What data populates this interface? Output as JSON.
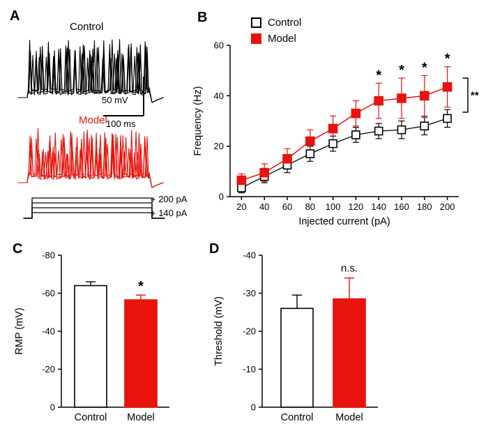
{
  "colors": {
    "control": "#000000",
    "model": "#e8130c",
    "background": "#ffffff"
  },
  "panels": {
    "A": {
      "label": "A",
      "control_label": "Control",
      "model_label": "Model",
      "scale_voltage": "50 mV",
      "scale_time": "100 ms",
      "current_top": "+ 200 pA",
      "current_bottom": "+ 140 pA"
    },
    "B": {
      "label": "B",
      "legend": [
        {
          "name": "Control"
        },
        {
          "name": "Model"
        }
      ]
    },
    "C": {
      "label": "C"
    },
    "D": {
      "label": "D"
    }
  },
  "chart_data": [
    {
      "id": "B",
      "type": "line",
      "xlabel": "Injected current (pA)",
      "ylabel": "Frequency (Hz)",
      "x": [
        20,
        40,
        60,
        80,
        100,
        120,
        140,
        160,
        180,
        200
      ],
      "xlim": [
        10,
        210
      ],
      "ylim": [
        0,
        60
      ],
      "yticks": [
        0,
        20,
        40,
        60
      ],
      "legend_position": "top",
      "grid": false,
      "series": [
        {
          "name": "Control",
          "marker": "open-square",
          "color": "#000000",
          "values": [
            3.5,
            8,
            12.5,
            17,
            21,
            24.5,
            26,
            26.5,
            28,
            31
          ],
          "errors": [
            2,
            2.5,
            3,
            3,
            3,
            3,
            3,
            3.5,
            3.5,
            3.5
          ]
        },
        {
          "name": "Model",
          "marker": "filled-square",
          "color": "#e8130c",
          "values": [
            6.5,
            9.5,
            15,
            22,
            27,
            33,
            38,
            39,
            40,
            43.5
          ],
          "errors": [
            2.5,
            3.5,
            4,
            4.5,
            5,
            5,
            7,
            8,
            8,
            8
          ]
        }
      ],
      "significance_marks": [
        {
          "x": 140,
          "label": "*"
        },
        {
          "x": 160,
          "label": "*"
        },
        {
          "x": 180,
          "label": "*"
        },
        {
          "x": 200,
          "label": "*"
        }
      ],
      "group_significance": "**"
    },
    {
      "id": "C",
      "type": "bar",
      "ylabel": "RMP (mV)",
      "categories": [
        "Control",
        "Model"
      ],
      "values": [
        -64,
        -56.5
      ],
      "errors": [
        2,
        2.5
      ],
      "ylim": [
        0,
        -80
      ],
      "yticks": [
        0,
        -20,
        -40,
        -60,
        -80
      ],
      "bar_colors": [
        "#ffffff",
        "#e8130c"
      ],
      "significance": {
        "label": "*",
        "on": "Model"
      }
    },
    {
      "id": "D",
      "type": "bar",
      "ylabel": "Threshold (mV)",
      "categories": [
        "Control",
        "Model"
      ],
      "values": [
        -26,
        -28.5
      ],
      "errors": [
        3.5,
        5.5
      ],
      "ylim": [
        0,
        -40
      ],
      "yticks": [
        0,
        -10,
        -20,
        -30,
        -40
      ],
      "bar_colors": [
        "#ffffff",
        "#e8130c"
      ],
      "significance": {
        "label": "n.s.",
        "on": "Model"
      }
    }
  ]
}
